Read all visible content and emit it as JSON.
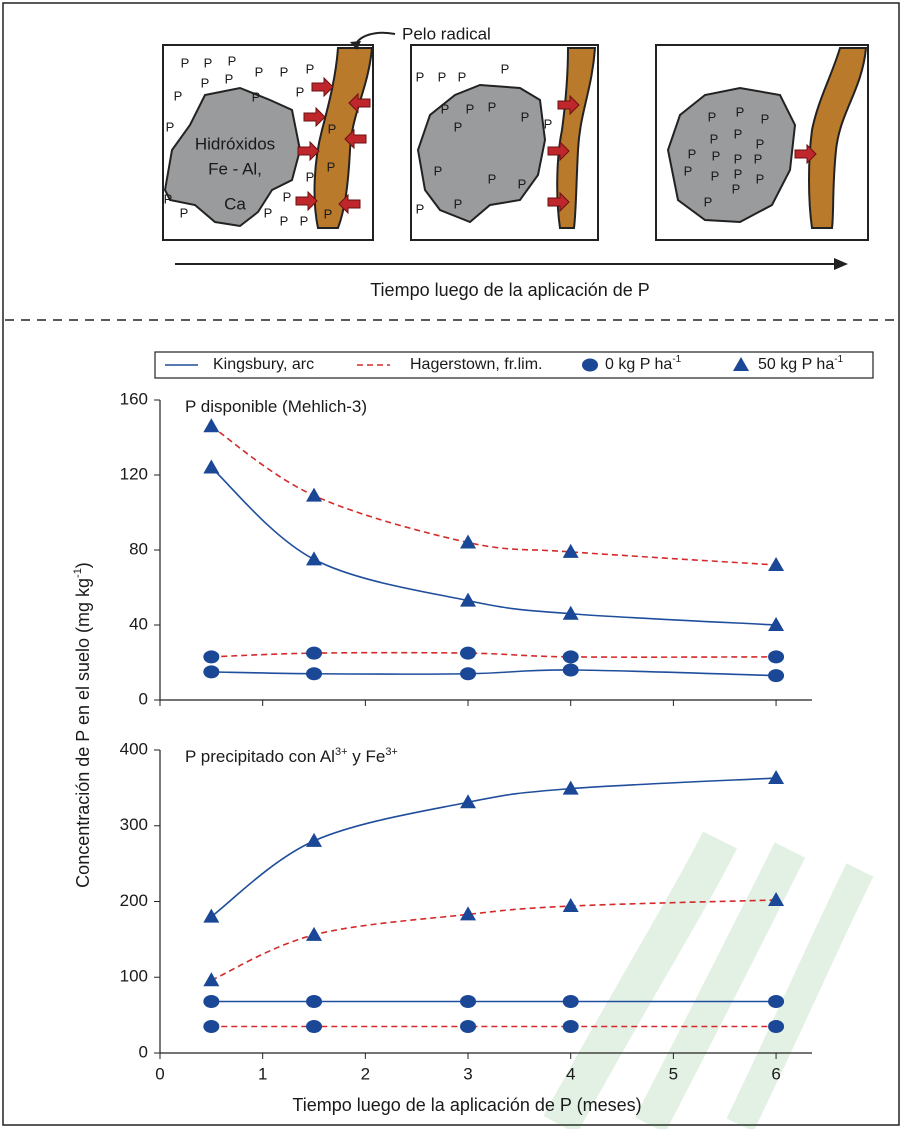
{
  "diagram": {
    "root_label": "Pelo radical",
    "rock_label": [
      "Hidróxidos",
      "Fe - Al,",
      "Ca"
    ],
    "boxes": [
      {
        "phosphates": [
          "P",
          "P",
          "P",
          "P",
          "P",
          "P",
          "P",
          "P",
          "P",
          "P",
          "P",
          "P",
          "P",
          "P",
          "P",
          "P",
          "P",
          "P",
          "P",
          "P",
          "P",
          "P"
        ]
      },
      {
        "phosphates": [
          "P",
          "P",
          "P",
          "P",
          "P",
          "P",
          "P",
          "P",
          "P",
          "P",
          "P",
          "P",
          "P",
          "P",
          "P"
        ]
      },
      {
        "phosphates": [
          "P",
          "P",
          "P",
          "P",
          "P",
          "P",
          "P",
          "P",
          "P",
          "P",
          "P",
          "P",
          "P",
          "P",
          "P",
          "P"
        ]
      }
    ],
    "arrow_label": "Tiempo luego de la aplicación de P"
  },
  "shared": {
    "xlabel": "Tiempo luego de la aplicación de P (meses)",
    "ylabel": {
      "text": "Concentración de P en el suelo (mg kg",
      "sup": "-1",
      "end": ")"
    },
    "legend": {
      "soils": [
        {
          "name": "Kingsbury, arc",
          "color": "#1f4e9c",
          "dash": false
        },
        {
          "name": "Hagerstown, fr.lim.",
          "color": "#d42a2a",
          "dash": true
        }
      ],
      "rates": [
        {
          "name": "0 kg P ha",
          "sup": "-1",
          "marker": "circle"
        },
        {
          "name": "50 kg P ha",
          "sup": "-1",
          "marker": "triangle"
        }
      ],
      "marker_color": "#1a4796"
    }
  },
  "chart_data": [
    {
      "type": "line",
      "title": [
        {
          "text": "P disponible (Mehlich-3)"
        }
      ],
      "x": [
        0.5,
        1.5,
        3,
        4,
        6
      ],
      "xlim": [
        0,
        6.35
      ],
      "xticks": [
        0,
        1,
        2,
        3,
        4,
        5,
        6
      ],
      "xtick_labels": false,
      "ylim": [
        0,
        160
      ],
      "yticks": [
        0,
        40,
        80,
        120,
        160
      ],
      "series": [
        {
          "color": "#1f4e9c",
          "dash": false,
          "marker": "circle",
          "values": [
            15,
            14,
            14,
            16,
            13
          ]
        },
        {
          "color": "#d42a2a",
          "dash": true,
          "marker": "circle",
          "values": [
            23,
            25,
            25,
            23,
            23
          ]
        },
        {
          "color": "#1f4e9c",
          "dash": false,
          "marker": "triangle",
          "values": [
            124,
            75,
            53,
            46,
            40
          ]
        },
        {
          "color": "#d42a2a",
          "dash": true,
          "marker": "triangle",
          "values": [
            146,
            109,
            84,
            79,
            72
          ]
        }
      ]
    },
    {
      "type": "line",
      "title": [
        {
          "text": "P precipitado con Al"
        },
        {
          "text": "3+",
          "sup": true
        },
        {
          "text": " y Fe"
        },
        {
          "text": "3+",
          "sup": true
        }
      ],
      "x": [
        0.5,
        1.5,
        3,
        4,
        6
      ],
      "xlim": [
        0,
        6.35
      ],
      "xticks": [
        0,
        1,
        2,
        3,
        4,
        5,
        6
      ],
      "xtick_labels": true,
      "ylim": [
        0,
        400
      ],
      "yticks": [
        0,
        100,
        200,
        300,
        400
      ],
      "series": [
        {
          "color": "#1f4e9c",
          "dash": false,
          "marker": "circle",
          "values": [
            68,
            68,
            68,
            68,
            68
          ]
        },
        {
          "color": "#d42a2a",
          "dash": true,
          "marker": "circle",
          "values": [
            35,
            35,
            35,
            35,
            35
          ]
        },
        {
          "color": "#1f4e9c",
          "dash": false,
          "marker": "triangle",
          "values": [
            180,
            280,
            331,
            349,
            363
          ]
        },
        {
          "color": "#d42a2a",
          "dash": true,
          "marker": "triangle",
          "values": [
            96,
            156,
            183,
            194,
            202
          ]
        }
      ]
    }
  ]
}
